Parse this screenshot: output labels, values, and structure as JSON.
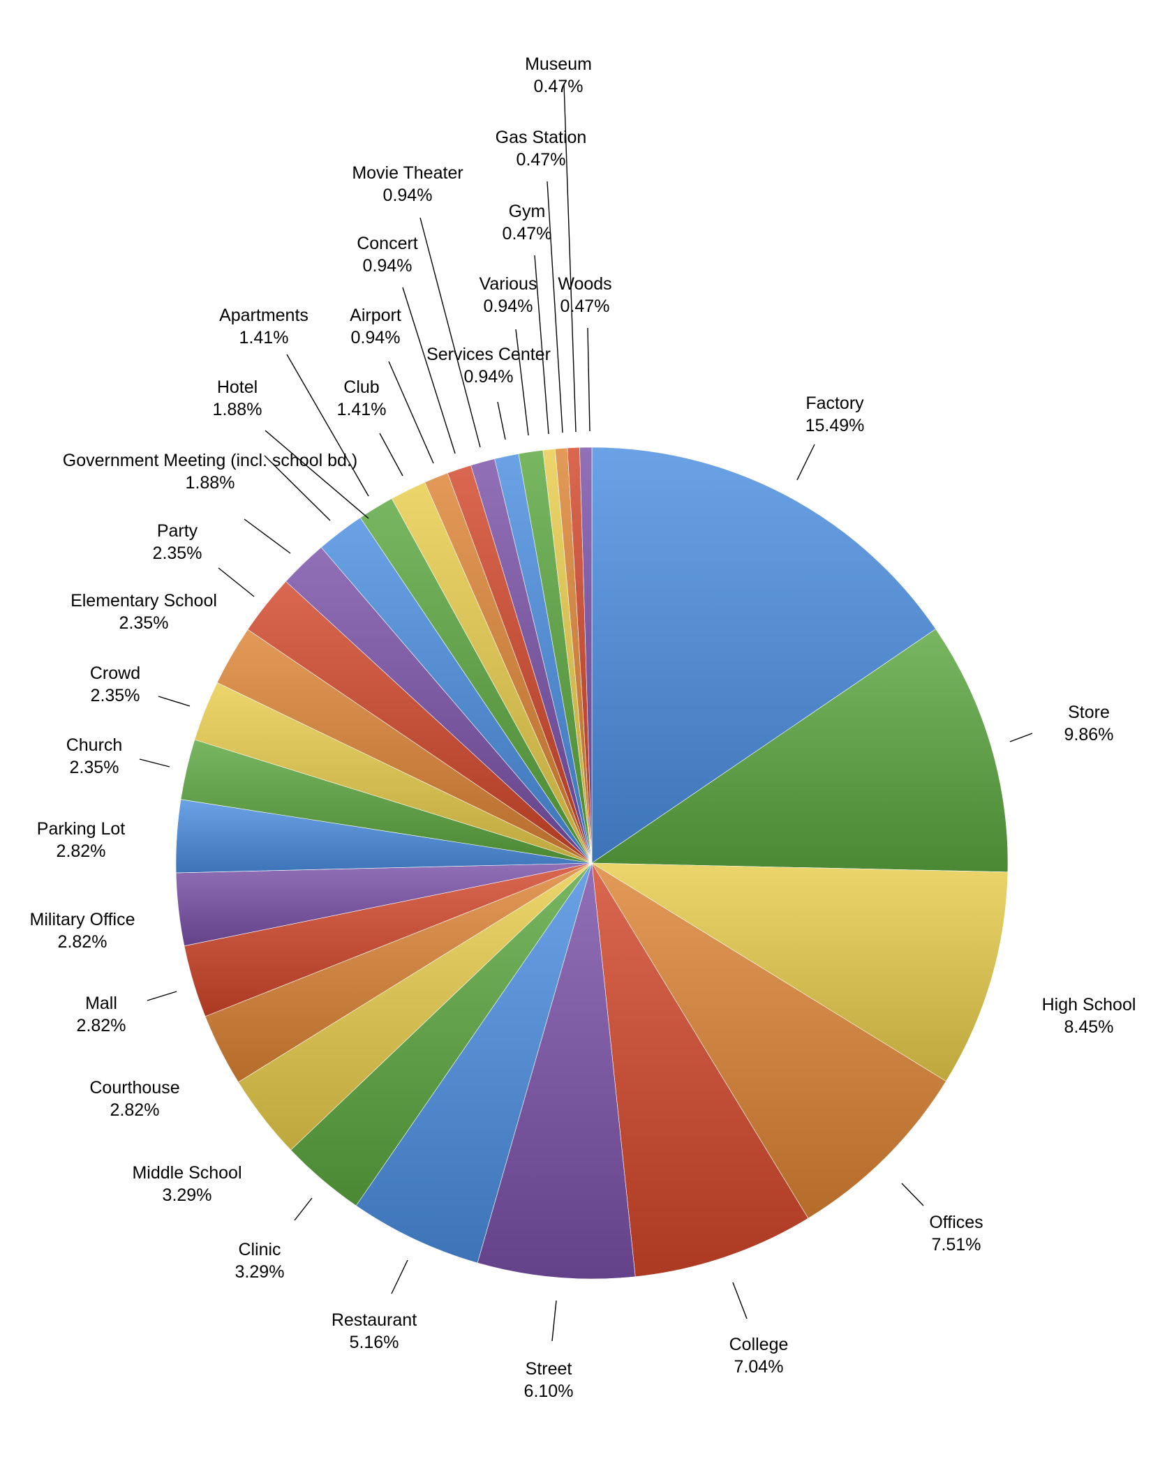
{
  "chart_data": {
    "type": "pie",
    "title": "",
    "legend": "none",
    "start": "top",
    "direction": "clockwise",
    "slices": [
      {
        "label": "Factory",
        "value": 15.49,
        "value_label": "15.49%",
        "color": "#4a8ee0"
      },
      {
        "label": "Store",
        "value": 9.86,
        "value_label": "9.86%",
        "color": "#5aa640"
      },
      {
        "label": "High School",
        "value": 8.45,
        "value_label": "8.45%",
        "color": "#e8cc4a"
      },
      {
        "label": "Offices",
        "value": 7.51,
        "value_label": "7.51%",
        "color": "#dd8435"
      },
      {
        "label": "College",
        "value": 7.04,
        "value_label": "7.04%",
        "color": "#d2462a"
      },
      {
        "label": "Street",
        "value": 6.1,
        "value_label": "6.10%",
        "color": "#7a50a8"
      },
      {
        "label": "Restaurant",
        "value": 5.16,
        "value_label": "5.16%",
        "color": "#4a8ee0"
      },
      {
        "label": "Clinic",
        "value": 3.29,
        "value_label": "3.29%",
        "color": "#5aa640"
      },
      {
        "label": "Middle School",
        "value": 3.29,
        "value_label": "3.29%",
        "color": "#e8cc4a"
      },
      {
        "label": "Courthouse",
        "value": 2.82,
        "value_label": "2.82%",
        "color": "#dd8435"
      },
      {
        "label": "Mall",
        "value": 2.82,
        "value_label": "2.82%",
        "color": "#d2462a"
      },
      {
        "label": "Military Office",
        "value": 2.82,
        "value_label": "2.82%",
        "color": "#7a50a8"
      },
      {
        "label": "Parking Lot",
        "value": 2.82,
        "value_label": "2.82%",
        "color": "#4a8ee0"
      },
      {
        "label": "Church",
        "value": 2.35,
        "value_label": "2.35%",
        "color": "#5aa640"
      },
      {
        "label": "Crowd",
        "value": 2.35,
        "value_label": "2.35%",
        "color": "#e8cc4a"
      },
      {
        "label": "Elementary School",
        "value": 2.35,
        "value_label": "2.35%",
        "color": "#dd8435"
      },
      {
        "label": "Party",
        "value": 2.35,
        "value_label": "2.35%",
        "color": "#d2462a"
      },
      {
        "label": "Government Meeting (incl. school bd.)",
        "value": 1.88,
        "value_label": "1.88%",
        "color": "#7a50a8"
      },
      {
        "label": "Hotel",
        "value": 1.88,
        "value_label": "1.88%",
        "color": "#4a8ee0"
      },
      {
        "label": "Apartments",
        "value": 1.41,
        "value_label": "1.41%",
        "color": "#5aa640"
      },
      {
        "label": "Club",
        "value": 1.41,
        "value_label": "1.41%",
        "color": "#e8cc4a"
      },
      {
        "label": "Airport",
        "value": 0.94,
        "value_label": "0.94%",
        "color": "#dd8435"
      },
      {
        "label": "Concert",
        "value": 0.94,
        "value_label": "0.94%",
        "color": "#d2462a"
      },
      {
        "label": "Movie Theater",
        "value": 0.94,
        "value_label": "0.94%",
        "color": "#7a50a8"
      },
      {
        "label": "Services Center",
        "value": 0.94,
        "value_label": "0.94%",
        "color": "#4a8ee0"
      },
      {
        "label": "Various",
        "value": 0.94,
        "value_label": "0.94%",
        "color": "#5aa640"
      },
      {
        "label": "Gym",
        "value": 0.47,
        "value_label": "0.47%",
        "color": "#e8cc4a"
      },
      {
        "label": "Gas Station",
        "value": 0.47,
        "value_label": "0.47%",
        "color": "#dd8435"
      },
      {
        "label": "Museum",
        "value": 0.47,
        "value_label": "0.47%",
        "color": "#d2462a"
      },
      {
        "label": "Woods",
        "value": 0.47,
        "value_label": "0.47%",
        "color": "#7a50a8"
      }
    ]
  }
}
